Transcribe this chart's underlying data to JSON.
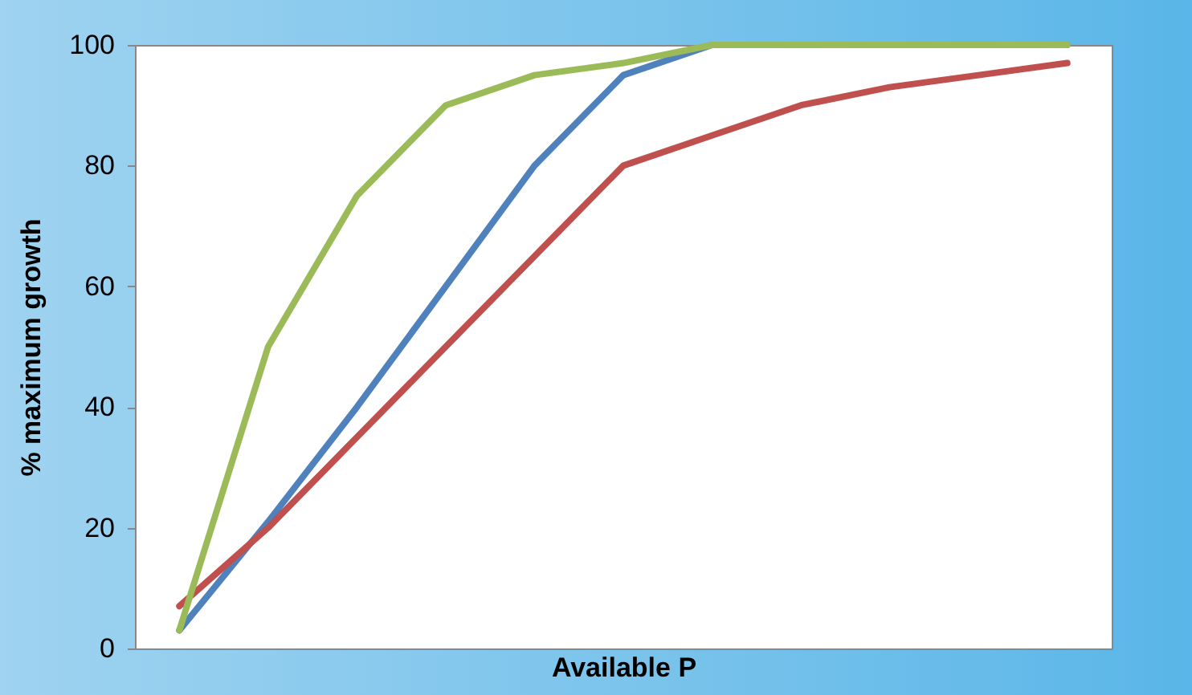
{
  "chart_data": {
    "type": "line",
    "xlabel": "Available P",
    "ylabel": "% maximum growth",
    "categories": [
      null,
      null,
      null,
      null,
      null,
      null,
      null,
      null,
      null,
      null,
      null
    ],
    "ylim": [
      0,
      100
    ],
    "yticks": [
      0,
      20,
      40,
      60,
      80,
      100
    ],
    "grid": false,
    "marker": "none",
    "line_style": "solid",
    "series": [
      {
        "color": "#4f81bd",
        "values": [
          3,
          21,
          40,
          60,
          80,
          95,
          100,
          100,
          100,
          100,
          100
        ]
      },
      {
        "color": "#c0504d",
        "values": [
          7,
          20,
          35,
          50,
          65,
          80,
          85,
          90,
          93,
          95,
          97
        ]
      },
      {
        "color": "#9bbb59",
        "values": [
          3,
          50,
          75,
          90,
          95,
          97,
          100,
          100,
          100,
          100,
          100
        ]
      }
    ]
  }
}
